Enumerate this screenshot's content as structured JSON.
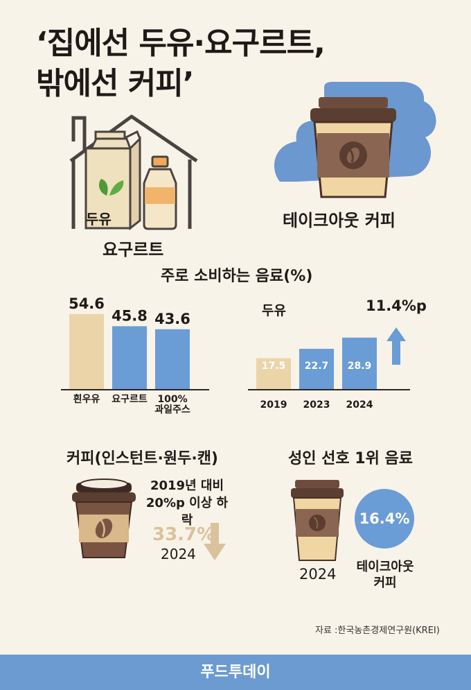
{
  "title_line1": "‘집에선 두유·요구르트,",
  "title_line2": "밖에선 커피’",
  "home": {
    "carton_label": "두유",
    "label": "요구르트"
  },
  "takeout": {
    "label": "테이크아웃 커피"
  },
  "section_title": "주로 소비하는 음료(%)",
  "chart_data": [
    {
      "type": "bar",
      "categories": [
        "흰우유",
        "요구르트",
        "100% 과일주스"
      ],
      "category_lines": [
        [
          "흰우유"
        ],
        [
          "요구르트"
        ],
        [
          "100%",
          "과일주스"
        ]
      ],
      "values": [
        54.6,
        45.8,
        43.6
      ],
      "value_labels": [
        "54.6",
        "45.8",
        "43.6"
      ],
      "colors": [
        "#ebd5a8",
        "#6a9cd6",
        "#6a9cd6"
      ]
    },
    {
      "type": "bar",
      "series_label": "두유",
      "categories": [
        "2019",
        "2023",
        "2024"
      ],
      "values": [
        17.5,
        22.7,
        28.9
      ],
      "value_labels": [
        "17.5",
        "22.7",
        "28.9"
      ],
      "colors": [
        "#ebd5a8",
        "#6a9cd6",
        "#6a9cd6"
      ],
      "change_label": "11.4%p"
    }
  ],
  "coffee": {
    "title": "커피(인스턴트·원두·캔)",
    "note_line1": "2019년 대비",
    "note_line2": "20%p 이상 하락",
    "value": "33.7%",
    "year": "2024"
  },
  "adult": {
    "title": "성인 선호 1위 음료",
    "value": "16.4%",
    "year": "2024",
    "label_line1": "테이크아웃",
    "label_line2": "커피"
  },
  "source": "자료 :한국농촌경제연구원(KREI)",
  "footer": "푸드투데이",
  "colors": {
    "background": "#f8f3e8",
    "blue": "#6a9cd6",
    "beige": "#ebd5a8",
    "brown": "#7a5443",
    "down_arrow": "#d9c29c"
  }
}
